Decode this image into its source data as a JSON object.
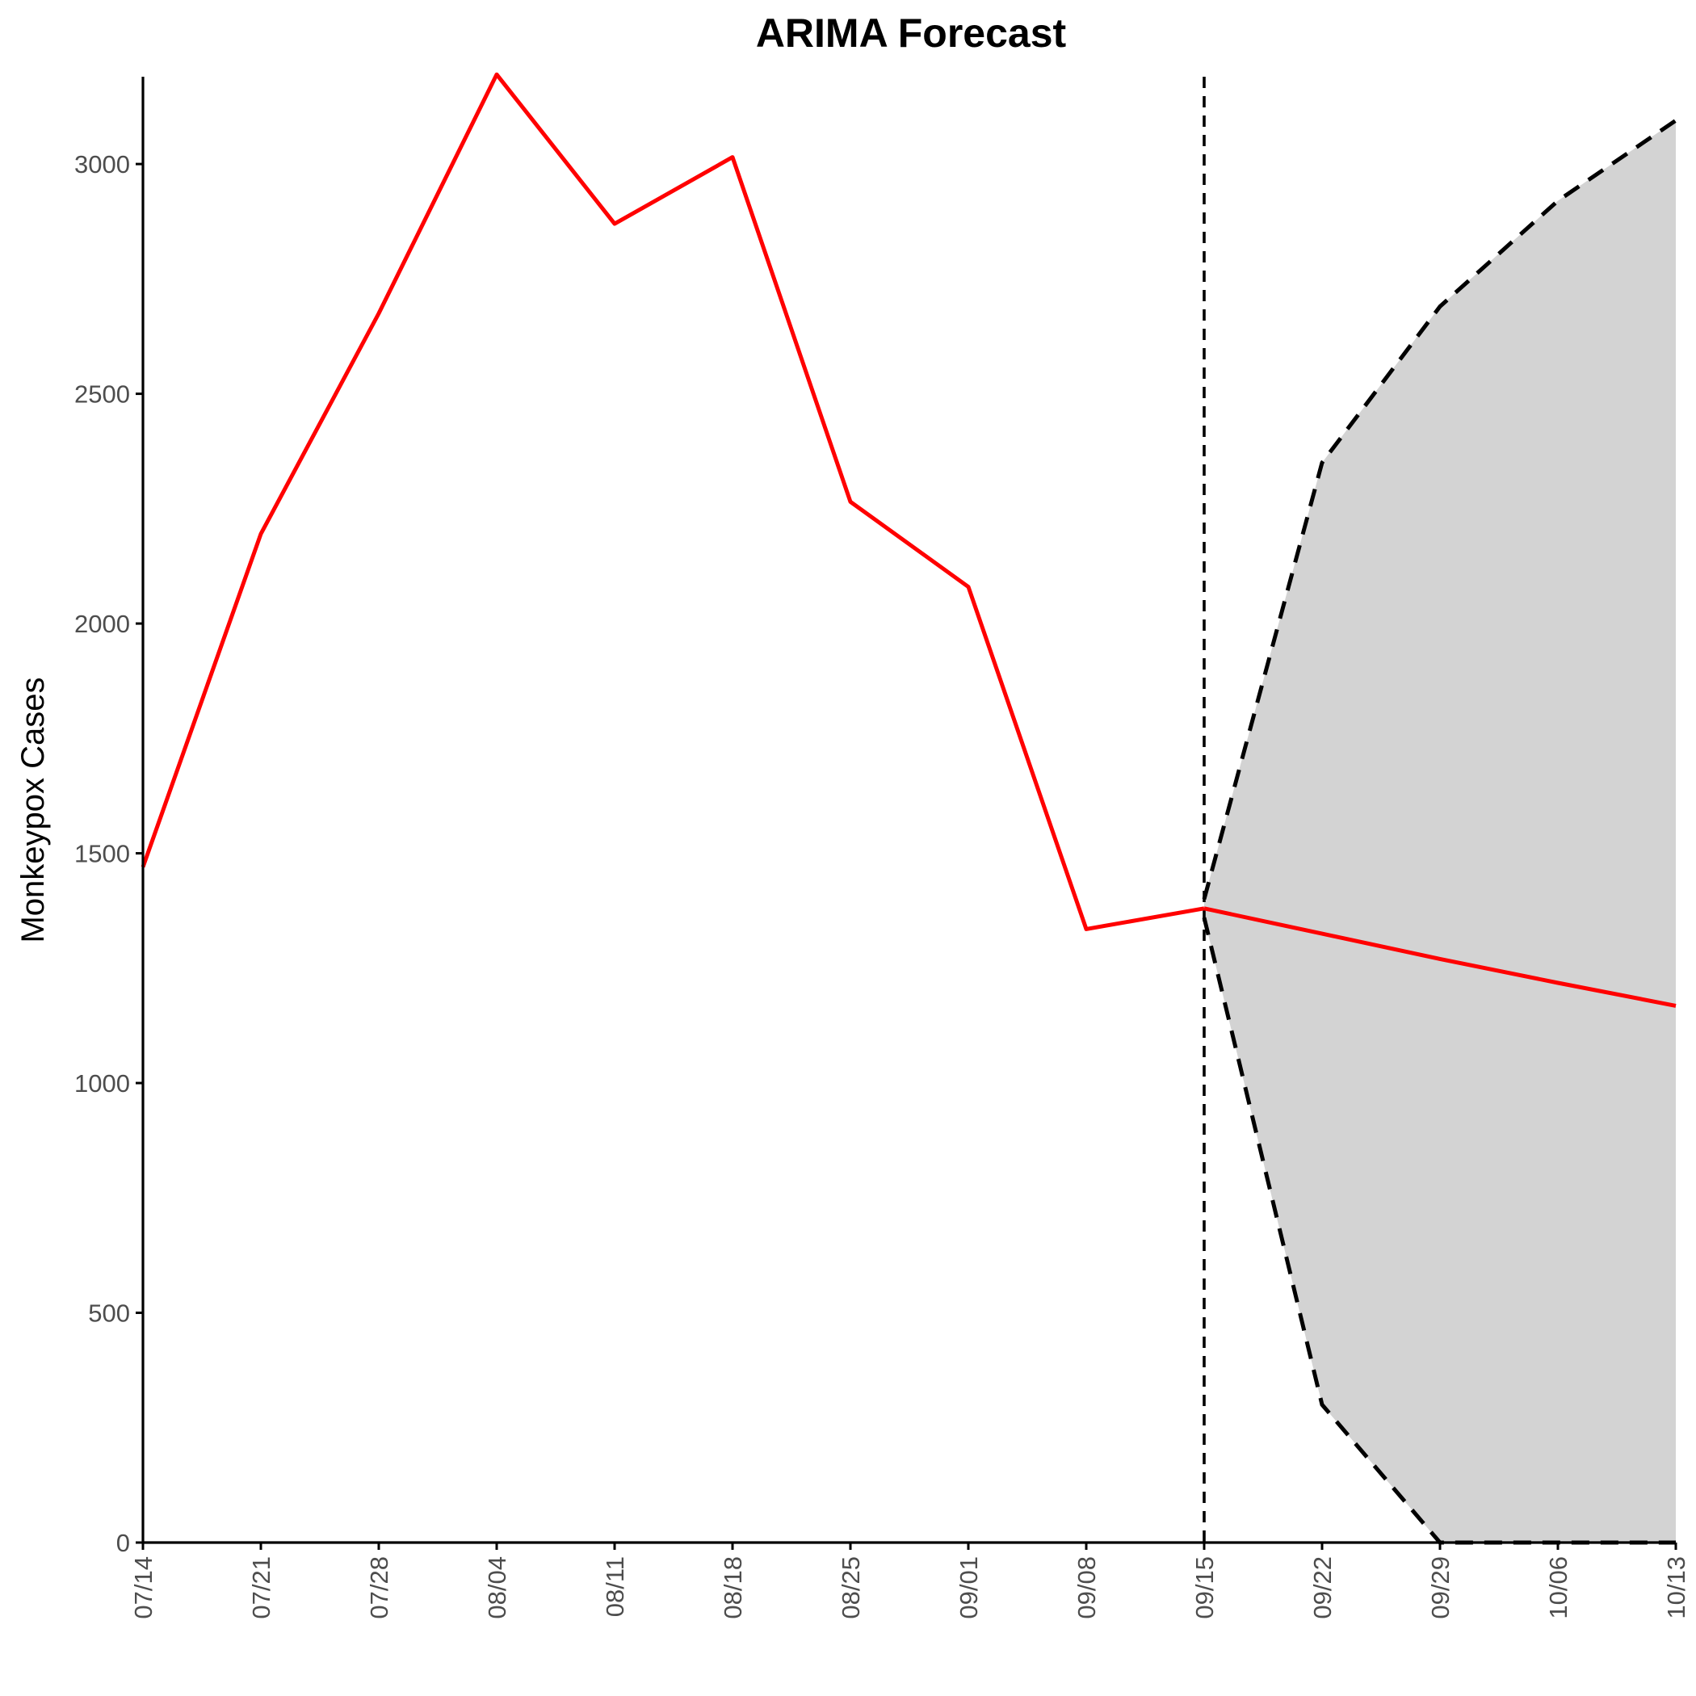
{
  "chart_data": {
    "type": "line",
    "title": "ARIMA Forecast",
    "xlabel": "",
    "ylabel": "Monkeypox Cases",
    "x_categories": [
      "07/14",
      "07/21",
      "07/28",
      "08/04",
      "08/11",
      "08/18",
      "08/25",
      "09/01",
      "09/08",
      "09/15",
      "09/22",
      "09/29",
      "10/06",
      "10/13"
    ],
    "ylim": [
      0,
      3190
    ],
    "yticks": [
      0,
      500,
      1000,
      1500,
      2000,
      2500,
      3000
    ],
    "grid": false,
    "legend": "none",
    "forecast_start": "09/15",
    "series": [
      {
        "role": "observed",
        "color": "#ff0000",
        "x": [
          "07/14",
          "07/21",
          "07/28",
          "08/04",
          "08/11",
          "08/18",
          "08/25",
          "09/01",
          "09/08",
          "09/15"
        ],
        "y": [
          1470,
          2195,
          2675,
          3195,
          2870,
          3015,
          2265,
          2080,
          1335,
          1380
        ]
      },
      {
        "role": "forecast",
        "color": "#ff0000",
        "x": [
          "09/15",
          "09/22",
          "09/29",
          "10/06",
          "10/13"
        ],
        "y": [
          1380,
          1325,
          1270,
          1218,
          1168
        ]
      },
      {
        "role": "upper_bound",
        "color": "#000000",
        "x": [
          "09/15",
          "09/22",
          "09/29",
          "10/06",
          "10/13"
        ],
        "y": [
          1400,
          2350,
          2690,
          2920,
          3095
        ]
      },
      {
        "role": "lower_bound",
        "color": "#000000",
        "x": [
          "09/15",
          "09/22",
          "09/29",
          "10/06",
          "10/13"
        ],
        "y": [
          1360,
          300,
          0,
          0,
          0
        ]
      }
    ],
    "band_color": "#d3d3d3"
  }
}
